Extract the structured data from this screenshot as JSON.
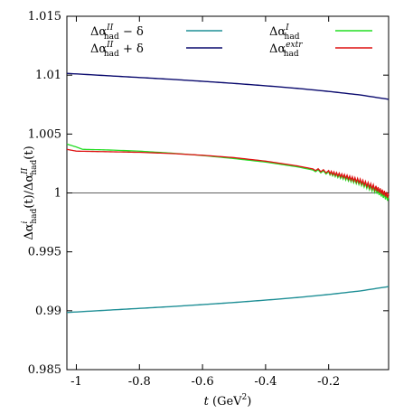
{
  "chart_data": {
    "type": "line",
    "xlabel": {
      "var": "t",
      "unit": "(GeV",
      "unit_exp": "2",
      "unit_close": ")"
    },
    "ylabel": {
      "num_main": "Δα",
      "num_sup": "i",
      "num_sub": "had",
      "num_arg": "(t)/",
      "den_main": "Δα",
      "den_sup": "II",
      "den_sub": "had",
      "den_arg": "(t)"
    },
    "xlim": [
      -1.03,
      -0.01
    ],
    "ylim": [
      0.985,
      1.015
    ],
    "x_ticks": [
      -1,
      -0.8,
      -0.6,
      -0.4,
      -0.2
    ],
    "x_tick_labels": [
      "-1",
      "-0.8",
      "-0.6",
      "-0.4",
      "-0.2"
    ],
    "y_ticks": [
      0.985,
      0.99,
      0.995,
      1,
      1.005,
      1.01,
      1.015
    ],
    "y_tick_labels": [
      "0.985",
      "0.99",
      "0.995",
      "1",
      "1.005",
      "1.01",
      "1.015"
    ],
    "grid": false,
    "reference_line": {
      "y": 1.0,
      "color": "#606060"
    },
    "legend_placement": "top",
    "series": [
      {
        "legend": {
          "main": "Δα",
          "sup": "II",
          "sub": "had",
          "suffix": " − δ"
        },
        "color": "#1f8f96",
        "x": [
          -1.03,
          -0.9,
          -0.8,
          -0.7,
          -0.6,
          -0.5,
          -0.4,
          -0.3,
          -0.2,
          -0.1,
          -0.01
        ],
        "y": [
          0.98985,
          0.99005,
          0.9902,
          0.99035,
          0.99052,
          0.9907,
          0.9909,
          0.99112,
          0.99138,
          0.99168,
          0.99205
        ]
      },
      {
        "legend": {
          "main": "Δα",
          "sup": "II",
          "sub": "had",
          "suffix": " + δ"
        },
        "color": "#0a0a6e",
        "x": [
          -1.03,
          -0.9,
          -0.8,
          -0.7,
          -0.6,
          -0.5,
          -0.4,
          -0.3,
          -0.2,
          -0.1,
          -0.01
        ],
        "y": [
          1.01015,
          1.00995,
          1.0098,
          1.00965,
          1.00948,
          1.0093,
          1.0091,
          1.00888,
          1.00862,
          1.00832,
          1.00795
        ]
      },
      {
        "legend": {
          "main": "Δα",
          "sup": "I",
          "sub": "had",
          "suffix": ""
        },
        "color": "#22dd22",
        "x": [
          -1.03,
          -1.0,
          -0.98,
          -0.9,
          -0.8,
          -0.7,
          -0.6,
          -0.5,
          -0.4,
          -0.3,
          -0.2,
          -0.15,
          -0.1,
          -0.05,
          -0.01
        ],
        "y": [
          1.00415,
          1.0039,
          1.0037,
          1.00365,
          1.00355,
          1.00338,
          1.00318,
          1.00292,
          1.00262,
          1.00222,
          1.00168,
          1.00128,
          1.00085,
          1.0002,
          0.9995
        ]
      },
      {
        "legend": {
          "main": "Δα",
          "sup": "extr",
          "sub": "had",
          "suffix": ""
        },
        "color": "#dd1111",
        "x": [
          -1.03,
          -1.0,
          -0.9,
          -0.8,
          -0.7,
          -0.6,
          -0.5,
          -0.4,
          -0.3,
          -0.2,
          -0.15,
          -0.1,
          -0.05,
          -0.01
        ],
        "y": [
          1.0037,
          1.00355,
          1.0035,
          1.00345,
          1.00335,
          1.0032,
          1.003,
          1.0027,
          1.0023,
          1.00178,
          1.00142,
          1.001,
          1.0004,
          0.99975
        ]
      }
    ]
  }
}
